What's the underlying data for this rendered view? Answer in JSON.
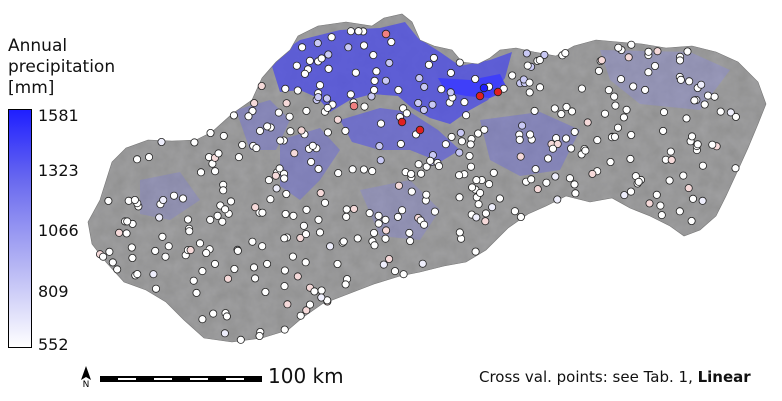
{
  "legend": {
    "title_line1": "Annual",
    "title_line2": "precipitation",
    "title_line3": "[mm]",
    "ticks": [
      "1581",
      "1323",
      "1066",
      "809",
      "552"
    ],
    "color_max": "#1f1fff",
    "color_min": "#ffffff"
  },
  "scale_bar": {
    "label": "100 km"
  },
  "caption": {
    "text": "Cross val. points: see Tab. 1, ",
    "method": "Linear"
  },
  "colors": {
    "terrain": "#8f8f8f",
    "high_precip": "#3a3aff",
    "point_low": "#ffffff",
    "point_high_red": "#e02020"
  }
}
